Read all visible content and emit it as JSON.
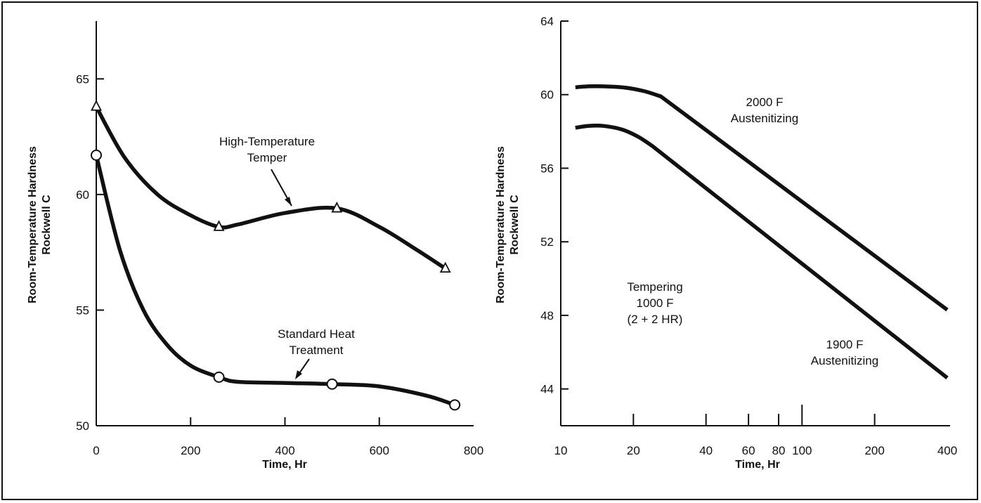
{
  "chart_data": [
    {
      "type": "line",
      "xlabel": "Time, Hr",
      "ylabel": [
        "Room-Temperature Hardness",
        "Rockwell C"
      ],
      "xlim": [
        0,
        800
      ],
      "ylim": [
        50,
        67.5
      ],
      "x_ticks": [
        0,
        200,
        400,
        600,
        800
      ],
      "x_tick_labels": [
        "0",
        "200",
        "400",
        "600",
        "800"
      ],
      "y_ticks": [
        50,
        55,
        60,
        65
      ],
      "y_tick_labels": [
        "50",
        "55",
        "60",
        "65"
      ],
      "grid": false,
      "legend": "none",
      "series": [
        {
          "name": "High-Temperature Temper",
          "marker": "triangle",
          "x": [
            0,
            260,
            510,
            740
          ],
          "y": [
            63.8,
            58.6,
            59.4,
            56.8
          ],
          "curve": [
            [
              0,
              63.8
            ],
            [
              60,
              61.6
            ],
            [
              130,
              60.0
            ],
            [
              200,
              59.1
            ],
            [
              260,
              58.6
            ],
            [
              300,
              58.7
            ],
            [
              400,
              59.2
            ],
            [
              510,
              59.4
            ],
            [
              600,
              58.6
            ],
            [
              680,
              57.6
            ],
            [
              740,
              56.8
            ]
          ]
        },
        {
          "name": "Standard Heat Treatment",
          "marker": "circle",
          "x": [
            0,
            260,
            500,
            760
          ],
          "y": [
            61.7,
            52.1,
            51.8,
            50.9
          ],
          "curve": [
            [
              0,
              61.7
            ],
            [
              50,
              57.6
            ],
            [
              100,
              55.0
            ],
            [
              150,
              53.5
            ],
            [
              200,
              52.6
            ],
            [
              260,
              52.1
            ],
            [
              300,
              51.9
            ],
            [
              400,
              51.85
            ],
            [
              500,
              51.8
            ],
            [
              600,
              51.7
            ],
            [
              700,
              51.3
            ],
            [
              760,
              50.9
            ]
          ]
        }
      ],
      "annotations": [
        {
          "text": [
            "High-Temperature",
            "Temper"
          ],
          "points_to": [
            415,
            59.25
          ]
        },
        {
          "text": [
            "Standard Heat",
            "Treatment"
          ],
          "points_to": [
            420,
            51.85
          ]
        }
      ]
    },
    {
      "type": "line",
      "xlabel": "Time, Hr",
      "ylabel": [
        "Room-Temperature Hardness",
        "Rockwell C"
      ],
      "xscale": "log",
      "xlim": [
        10,
        400
      ],
      "ylim": [
        42,
        64
      ],
      "x_ticks": [
        10,
        20,
        40,
        60,
        80,
        100,
        200,
        400
      ],
      "x_tick_labels": [
        "10",
        "20",
        "40",
        "60",
        "80",
        "100",
        "200",
        "400"
      ],
      "y_ticks": [
        44,
        48,
        52,
        56,
        60,
        64
      ],
      "y_tick_labels": [
        "44",
        "48",
        "52",
        "56",
        "60",
        "64"
      ],
      "grid": false,
      "legend": "none",
      "series": [
        {
          "name": "2000 F Austenitizing",
          "x": [
            11.5,
            13,
            15,
            18,
            22,
            26,
            400
          ],
          "y": [
            60.4,
            60.45,
            60.45,
            60.4,
            60.2,
            59.9,
            48.3
          ]
        },
        {
          "name": "1900 F Austenitizing",
          "x": [
            11.5,
            13,
            15,
            18,
            21,
            24,
            400
          ],
          "y": [
            58.2,
            58.3,
            58.3,
            58.1,
            57.7,
            57.2,
            44.6
          ]
        }
      ],
      "annotations": [
        {
          "text": [
            "2000 F",
            "Austenitizing"
          ]
        },
        {
          "text": [
            "1900 F",
            "Austenitizing"
          ]
        },
        {
          "text": [
            "Tempering",
            "1000 F",
            "(2 + 2 HR)"
          ]
        }
      ]
    }
  ]
}
